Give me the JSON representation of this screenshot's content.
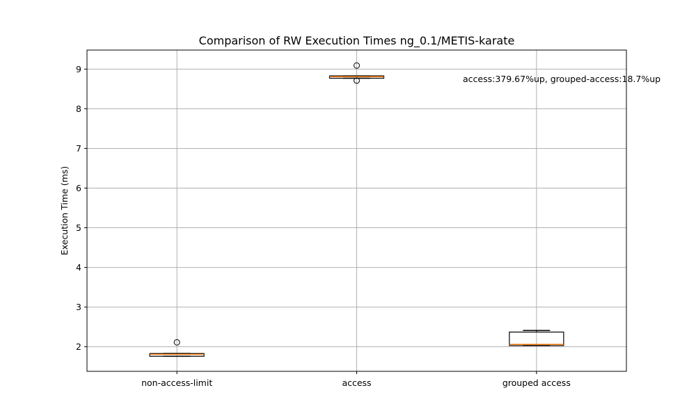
{
  "chart_data": {
    "type": "box",
    "title": "Comparison of RW Execution Times ng_0.1/METIS-karate",
    "xlabel": "",
    "ylabel": "Execution Time (ms)",
    "ylim": [
      1.38,
      9.48
    ],
    "yticks": [
      2,
      3,
      4,
      5,
      6,
      7,
      8,
      9
    ],
    "grid": true,
    "categories": [
      "non-access-limit",
      "access",
      "grouped access"
    ],
    "boxes": [
      {
        "category": "non-access-limit",
        "whisker_low": 1.76,
        "q1": 1.76,
        "median": 1.81,
        "q3": 1.83,
        "whisker_high": 1.83,
        "outliers": [
          2.11
        ]
      },
      {
        "category": "access",
        "whisker_low": 8.77,
        "q1": 8.77,
        "median": 8.81,
        "q3": 8.83,
        "whisker_high": 8.83,
        "outliers": [
          9.09,
          8.71
        ]
      },
      {
        "category": "grouped access",
        "whisker_low": 2.03,
        "q1": 2.03,
        "median": 2.06,
        "q3": 2.37,
        "whisker_high": 2.41,
        "outliers": []
      }
    ],
    "annotation": "access:379.67%up, grouped-access:18.7%up",
    "colors": {
      "box": "#000000",
      "median": "#ff7f0e",
      "grid": "#b0b0b0"
    }
  }
}
